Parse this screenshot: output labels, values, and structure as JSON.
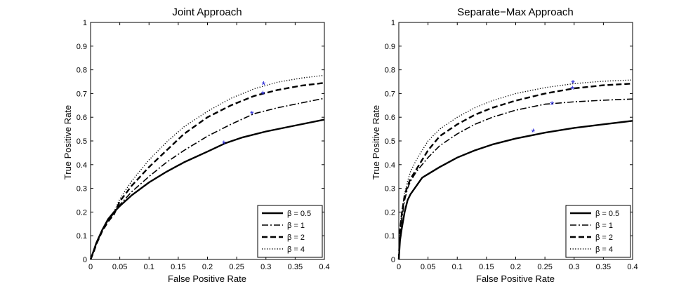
{
  "chart_data": [
    {
      "type": "line",
      "title": "Joint Approach",
      "xlabel": "False Positive Rate",
      "ylabel": "True Positive Rate",
      "xlim": [
        0,
        0.4
      ],
      "ylim": [
        0,
        1
      ],
      "xticks": [
        0,
        0.05,
        0.1,
        0.15,
        0.2,
        0.25,
        0.3,
        0.35,
        0.4
      ],
      "xtick_labels": [
        "0",
        "0.05",
        "0.1",
        "0.15",
        "0.2",
        "0.25",
        "0.3",
        "0.35",
        "0.4"
      ],
      "yticks": [
        0,
        0.1,
        0.2,
        0.3,
        0.4,
        0.5,
        0.6,
        0.7,
        0.8,
        0.9,
        1
      ],
      "ytick_labels": [
        "0",
        "0.1",
        "0.2",
        "0.3",
        "0.4",
        "0.5",
        "0.6",
        "0.7",
        "0.8",
        "0.9",
        "1"
      ],
      "grid": false,
      "legend_position": "bottom-right",
      "marker_color": "#1f1fd6",
      "series": [
        {
          "name": "β = 0.5",
          "style": "solid",
          "x": [
            0,
            0.005,
            0.01,
            0.02,
            0.03,
            0.04,
            0.05,
            0.07,
            0.1,
            0.13,
            0.16,
            0.2,
            0.23,
            0.26,
            0.3,
            0.35,
            0.4
          ],
          "y": [
            0,
            0.035,
            0.07,
            0.125,
            0.17,
            0.2,
            0.225,
            0.27,
            0.325,
            0.37,
            0.41,
            0.455,
            0.49,
            0.515,
            0.54,
            0.565,
            0.59
          ],
          "marker": {
            "x": 0.228,
            "y": 0.49
          }
        },
        {
          "name": "β = 1",
          "style": "dashdot",
          "x": [
            0,
            0.005,
            0.01,
            0.02,
            0.03,
            0.04,
            0.05,
            0.07,
            0.1,
            0.13,
            0.16,
            0.2,
            0.24,
            0.28,
            0.32,
            0.36,
            0.4
          ],
          "y": [
            0,
            0.035,
            0.07,
            0.125,
            0.165,
            0.195,
            0.23,
            0.285,
            0.35,
            0.41,
            0.46,
            0.52,
            0.57,
            0.615,
            0.64,
            0.66,
            0.68
          ],
          "marker": {
            "x": 0.276,
            "y": 0.615
          }
        },
        {
          "name": "β = 2",
          "style": "dashed",
          "x": [
            0,
            0.005,
            0.01,
            0.02,
            0.03,
            0.04,
            0.05,
            0.07,
            0.1,
            0.13,
            0.16,
            0.2,
            0.24,
            0.28,
            0.32,
            0.36,
            0.4
          ],
          "y": [
            0,
            0.03,
            0.065,
            0.12,
            0.16,
            0.19,
            0.245,
            0.31,
            0.39,
            0.46,
            0.53,
            0.6,
            0.65,
            0.69,
            0.715,
            0.733,
            0.745
          ],
          "marker": {
            "x": 0.295,
            "y": 0.7
          }
        },
        {
          "name": "β = 4",
          "style": "dotted",
          "x": [
            0,
            0.005,
            0.01,
            0.02,
            0.03,
            0.04,
            0.05,
            0.07,
            0.1,
            0.13,
            0.16,
            0.2,
            0.24,
            0.28,
            0.32,
            0.36,
            0.4
          ],
          "y": [
            0,
            0.03,
            0.065,
            0.12,
            0.165,
            0.2,
            0.255,
            0.33,
            0.42,
            0.495,
            0.56,
            0.625,
            0.68,
            0.72,
            0.748,
            0.765,
            0.777
          ],
          "marker": {
            "x": 0.296,
            "y": 0.74
          }
        }
      ]
    },
    {
      "type": "line",
      "title": "Separate−Max Approach",
      "xlabel": "False Positive Rate",
      "ylabel": "True Positive Rate",
      "xlim": [
        0,
        0.4
      ],
      "ylim": [
        0,
        1
      ],
      "xticks": [
        0,
        0.05,
        0.1,
        0.15,
        0.2,
        0.25,
        0.3,
        0.35,
        0.4
      ],
      "xtick_labels": [
        "0",
        "0.05",
        "0.1",
        "0.15",
        "0.2",
        "0.25",
        "0.3",
        "0.35",
        "0.4"
      ],
      "yticks": [
        0,
        0.1,
        0.2,
        0.3,
        0.4,
        0.5,
        0.6,
        0.7,
        0.8,
        0.9,
        1
      ],
      "ytick_labels": [
        "0",
        "0.1",
        "0.2",
        "0.3",
        "0.4",
        "0.5",
        "0.6",
        "0.7",
        "0.8",
        "0.9",
        "1"
      ],
      "grid": false,
      "legend_position": "bottom-right",
      "marker_color": "#1f1fd6",
      "series": [
        {
          "name": "β = 0.5",
          "style": "solid",
          "x": [
            0,
            0.002,
            0.005,
            0.01,
            0.015,
            0.02,
            0.03,
            0.04,
            0.05,
            0.07,
            0.1,
            0.13,
            0.16,
            0.2,
            0.25,
            0.3,
            0.35,
            0.4
          ],
          "y": [
            0,
            0.08,
            0.13,
            0.2,
            0.25,
            0.275,
            0.31,
            0.345,
            0.36,
            0.39,
            0.43,
            0.46,
            0.485,
            0.51,
            0.535,
            0.555,
            0.57,
            0.585
          ],
          "marker": {
            "x": 0.23,
            "y": 0.54
          }
        },
        {
          "name": "β = 1",
          "style": "dashdot",
          "x": [
            0,
            0.002,
            0.005,
            0.01,
            0.015,
            0.02,
            0.03,
            0.04,
            0.05,
            0.07,
            0.1,
            0.13,
            0.16,
            0.2,
            0.25,
            0.3,
            0.35,
            0.4
          ],
          "y": [
            0,
            0.1,
            0.17,
            0.25,
            0.3,
            0.33,
            0.37,
            0.4,
            0.43,
            0.48,
            0.53,
            0.57,
            0.6,
            0.63,
            0.655,
            0.665,
            0.672,
            0.677
          ],
          "marker": {
            "x": 0.262,
            "y": 0.655
          }
        },
        {
          "name": "β = 2",
          "style": "dashed",
          "x": [
            0,
            0.002,
            0.005,
            0.01,
            0.015,
            0.02,
            0.03,
            0.04,
            0.05,
            0.07,
            0.1,
            0.13,
            0.16,
            0.2,
            0.25,
            0.3,
            0.35,
            0.4
          ],
          "y": [
            0,
            0.12,
            0.19,
            0.27,
            0.31,
            0.34,
            0.38,
            0.42,
            0.46,
            0.52,
            0.57,
            0.61,
            0.64,
            0.67,
            0.7,
            0.722,
            0.735,
            0.742
          ],
          "marker": {
            "x": 0.297,
            "y": 0.72
          }
        },
        {
          "name": "β = 4",
          "style": "dotted",
          "x": [
            0,
            0.002,
            0.005,
            0.01,
            0.015,
            0.02,
            0.03,
            0.04,
            0.05,
            0.07,
            0.1,
            0.13,
            0.16,
            0.2,
            0.25,
            0.3,
            0.35,
            0.4
          ],
          "y": [
            0,
            0.13,
            0.2,
            0.28,
            0.33,
            0.37,
            0.42,
            0.46,
            0.5,
            0.55,
            0.6,
            0.64,
            0.67,
            0.7,
            0.725,
            0.742,
            0.752,
            0.757
          ],
          "marker": {
            "x": 0.298,
            "y": 0.745
          }
        }
      ]
    }
  ]
}
